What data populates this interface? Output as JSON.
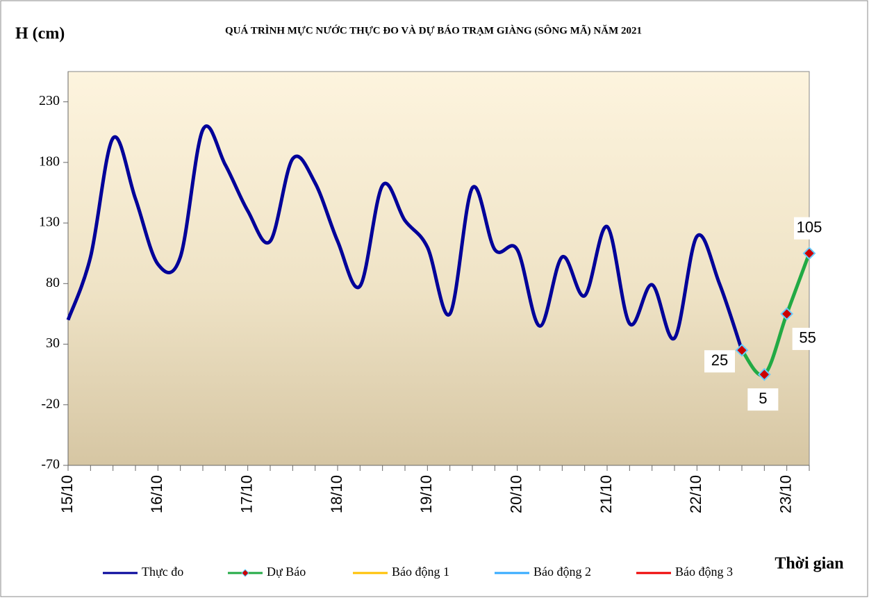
{
  "chart_data": {
    "type": "line",
    "title": "QUÁ TRÌNH MỰC NƯỚC THỰC ĐO VÀ DỰ BÁO TRẠM GIÀNG (SÔNG MÃ) NĂM 2021",
    "y_label": "H (cm)",
    "x_label": "Thời gian",
    "categories": [
      "15/10",
      null,
      null,
      null,
      "16/10",
      null,
      null,
      null,
      "17/10",
      null,
      null,
      null,
      "18/10",
      null,
      null,
      null,
      "19/10",
      null,
      null,
      null,
      "20/10",
      null,
      null,
      null,
      "21/10",
      null,
      null,
      null,
      "22/10",
      null,
      null,
      null,
      "23/10",
      null
    ],
    "series": [
      {
        "name": "Thực đo",
        "color": "#000099",
        "values": [
          50,
          102,
          200,
          150,
          96,
          102,
          207,
          178,
          140,
          115,
          183,
          163,
          115,
          78,
          161,
          132,
          110,
          55,
          159,
          108,
          108,
          45,
          102,
          70,
          127,
          47,
          79,
          35,
          119,
          80,
          25,
          null,
          null,
          null
        ]
      },
      {
        "name": "Dự Báo",
        "color": "#22aa44",
        "marker_color": "#cc0000",
        "values": [
          null,
          null,
          null,
          null,
          null,
          null,
          null,
          null,
          null,
          null,
          null,
          null,
          null,
          null,
          null,
          null,
          null,
          null,
          null,
          null,
          null,
          null,
          null,
          null,
          null,
          null,
          null,
          null,
          null,
          null,
          25,
          5,
          55,
          105
        ]
      },
      {
        "name": "Báo động 1",
        "color": "#ffc000",
        "values": [
          null,
          null,
          null,
          null,
          null,
          null,
          null,
          null,
          null,
          null,
          null,
          null,
          null,
          null,
          null,
          null,
          null,
          null,
          null,
          null,
          null,
          null,
          null,
          null,
          null,
          null,
          null,
          null,
          null,
          null,
          null,
          null,
          null,
          null
        ]
      },
      {
        "name": "Báo động 2",
        "color": "#33aaff",
        "values": [
          null,
          null,
          null,
          null,
          null,
          null,
          null,
          null,
          null,
          null,
          null,
          null,
          null,
          null,
          null,
          null,
          null,
          null,
          null,
          null,
          null,
          null,
          null,
          null,
          null,
          null,
          null,
          null,
          null,
          null,
          null,
          null,
          null,
          null
        ]
      },
      {
        "name": "Báo động 3",
        "color": "#ee0000",
        "values": [
          null,
          null,
          null,
          null,
          null,
          null,
          null,
          null,
          null,
          null,
          null,
          null,
          null,
          null,
          null,
          null,
          null,
          null,
          null,
          null,
          null,
          null,
          null,
          null,
          null,
          null,
          null,
          null,
          null,
          null,
          null,
          null,
          null,
          null
        ]
      }
    ],
    "ylim": [
      -70,
      255
    ],
    "yticks": [
      -70,
      -20,
      30,
      80,
      130,
      180,
      230
    ]
  }
}
